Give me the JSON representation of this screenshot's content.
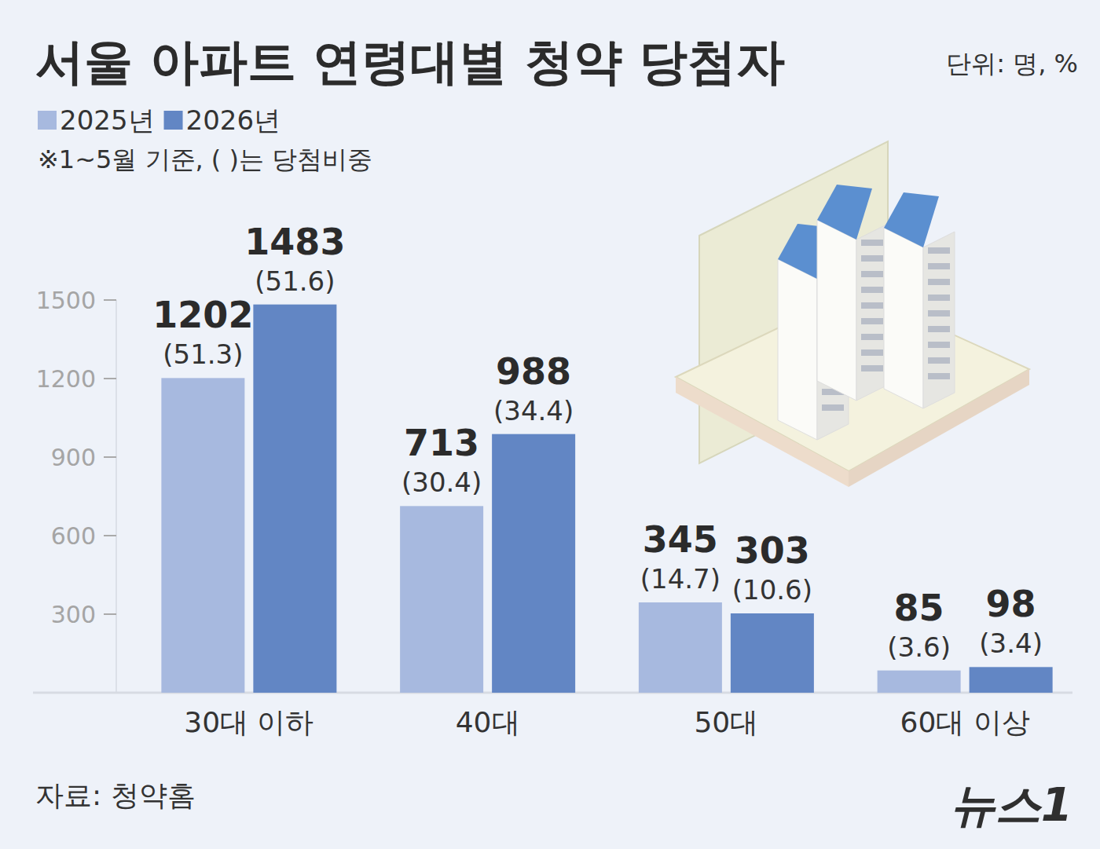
{
  "chart_data": {
    "type": "bar",
    "title": "서울 아파트 연령대별 청약 당첨자",
    "unit": "단위: 명, %",
    "note": "※1~5월 기준, ( )는 당첨비중",
    "source": "자료: 청약홈",
    "logo": "뉴스1",
    "categories": [
      "30대 이하",
      "40대",
      "50대",
      "60대 이상"
    ],
    "series": [
      {
        "name": "2025년",
        "color": "#a7b9df",
        "values": [
          1202,
          713,
          345,
          85
        ],
        "share_labels": [
          "(51.3)",
          "(30.4)",
          "(14.7)",
          "(3.6)"
        ]
      },
      {
        "name": "2026년",
        "color": "#6286c4",
        "values": [
          1483,
          988,
          303,
          98
        ],
        "share_labels": [
          "(51.6)",
          "(34.4)",
          "(10.6)",
          "(3.4)"
        ]
      }
    ],
    "ylim": [
      0,
      1500
    ],
    "yticks": [
      300,
      600,
      900,
      1200,
      1500
    ],
    "data_labels": true,
    "legend": "top-left",
    "grid": false
  }
}
